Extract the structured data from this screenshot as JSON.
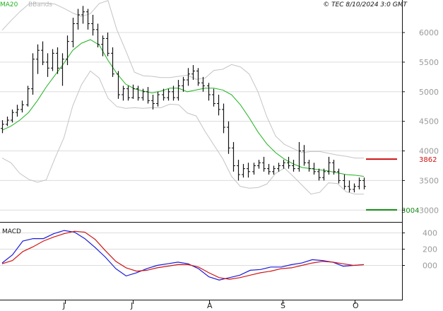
{
  "header": {
    "legend_ma": "MA20",
    "legend_bb": "BBands",
    "copyright": "© TEC 8/10/2024 3:0 GMT"
  },
  "colors": {
    "ma": "#1fb31f",
    "bbands": "#c4c4c4",
    "price": "#111111",
    "macd": "#1a1adc",
    "signal": "#d01515",
    "resistance": "#cc1111",
    "support": "#118811",
    "grid": "#dcdcdc"
  },
  "chart_data": [
    {
      "type": "ohlc",
      "panel": "price",
      "y_ticks": [
        "3000",
        "3500",
        "4000",
        "4500",
        "5000",
        "5500",
        "6000"
      ],
      "ylim": [
        2800,
        6550
      ],
      "x_ticks": [
        "J",
        "J",
        "A",
        "S",
        "O"
      ],
      "levels": {
        "resistance": {
          "label": "3862",
          "value": 3862
        },
        "support": {
          "label": "3004",
          "value": 3004
        }
      },
      "ma20": [
        [
          0,
          4350
        ],
        [
          5,
          4420
        ],
        [
          10,
          4520
        ],
        [
          15,
          4650
        ],
        [
          20,
          4850
        ],
        [
          25,
          5080
        ],
        [
          30,
          5280
        ],
        [
          35,
          5480
        ],
        [
          40,
          5700
        ],
        [
          45,
          5820
        ],
        [
          50,
          5880
        ],
        [
          55,
          5790
        ],
        [
          60,
          5530
        ],
        [
          65,
          5310
        ],
        [
          70,
          5130
        ],
        [
          75,
          5050
        ],
        [
          80,
          5010
        ],
        [
          85,
          4980
        ],
        [
          90,
          5010
        ],
        [
          95,
          5060
        ],
        [
          100,
          5060
        ],
        [
          105,
          5000
        ],
        [
          110,
          5030
        ],
        [
          115,
          5060
        ],
        [
          120,
          5060
        ],
        [
          125,
          5030
        ],
        [
          130,
          4950
        ],
        [
          135,
          4780
        ],
        [
          140,
          4560
        ],
        [
          145,
          4320
        ],
        [
          150,
          4120
        ],
        [
          155,
          3970
        ],
        [
          160,
          3860
        ],
        [
          165,
          3780
        ],
        [
          170,
          3720
        ],
        [
          175,
          3700
        ],
        [
          180,
          3680
        ],
        [
          185,
          3660
        ],
        [
          190,
          3630
        ],
        [
          195,
          3600
        ],
        [
          200,
          3590
        ],
        [
          205,
          3570
        ]
      ],
      "bb_upper": [
        [
          0,
          6040
        ],
        [
          5,
          6200
        ],
        [
          10,
          6350
        ],
        [
          15,
          6480
        ],
        [
          20,
          6500
        ],
        [
          25,
          6500
        ],
        [
          30,
          6480
        ],
        [
          35,
          6410
        ],
        [
          40,
          6330
        ],
        [
          45,
          6270
        ],
        [
          50,
          6320
        ],
        [
          55,
          6490
        ],
        [
          60,
          6540
        ],
        [
          65,
          6050
        ],
        [
          70,
          5700
        ],
        [
          75,
          5330
        ],
        [
          80,
          5270
        ],
        [
          85,
          5260
        ],
        [
          90,
          5240
        ],
        [
          95,
          5240
        ],
        [
          100,
          5260
        ],
        [
          105,
          5280
        ],
        [
          110,
          5210
        ],
        [
          115,
          5230
        ],
        [
          120,
          5360
        ],
        [
          125,
          5380
        ],
        [
          130,
          5460
        ],
        [
          135,
          5420
        ],
        [
          140,
          5300
        ],
        [
          145,
          5000
        ],
        [
          150,
          4580
        ],
        [
          155,
          4250
        ],
        [
          160,
          4110
        ],
        [
          165,
          4040
        ],
        [
          170,
          3970
        ],
        [
          175,
          3990
        ],
        [
          180,
          3990
        ],
        [
          185,
          3960
        ],
        [
          190,
          3930
        ],
        [
          195,
          3910
        ],
        [
          200,
          3880
        ],
        [
          205,
          3880
        ]
      ],
      "bb_lower": [
        [
          0,
          3880
        ],
        [
          5,
          3800
        ],
        [
          10,
          3620
        ],
        [
          15,
          3520
        ],
        [
          20,
          3470
        ],
        [
          25,
          3510
        ],
        [
          30,
          3880
        ],
        [
          35,
          4220
        ],
        [
          40,
          4760
        ],
        [
          45,
          5120
        ],
        [
          50,
          5350
        ],
        [
          55,
          5230
        ],
        [
          60,
          4890
        ],
        [
          65,
          4750
        ],
        [
          70,
          4720
        ],
        [
          75,
          4730
        ],
        [
          80,
          4720
        ],
        [
          85,
          4730
        ],
        [
          90,
          4730
        ],
        [
          95,
          4790
        ],
        [
          100,
          4780
        ],
        [
          105,
          4640
        ],
        [
          110,
          4590
        ],
        [
          115,
          4330
        ],
        [
          120,
          4100
        ],
        [
          125,
          3870
        ],
        [
          130,
          3570
        ],
        [
          135,
          3400
        ],
        [
          140,
          3370
        ],
        [
          145,
          3380
        ],
        [
          150,
          3440
        ],
        [
          155,
          3620
        ],
        [
          160,
          3710
        ],
        [
          165,
          3570
        ],
        [
          170,
          3420
        ],
        [
          175,
          3270
        ],
        [
          180,
          3300
        ],
        [
          185,
          3460
        ],
        [
          190,
          3450
        ],
        [
          195,
          3310
        ],
        [
          200,
          3270
        ],
        [
          205,
          3270
        ]
      ],
      "ohlc": [
        [
          0,
          4380,
          4520,
          4300,
          4450
        ],
        [
          2,
          4450,
          4580,
          4420,
          4520
        ],
        [
          4,
          4520,
          4700,
          4480,
          4650
        ],
        [
          6,
          4650,
          4780,
          4580,
          4700
        ],
        [
          8,
          4700,
          4850,
          4650,
          4780
        ],
        [
          10,
          4780,
          5100,
          4750,
          5050
        ],
        [
          12,
          5050,
          5650,
          4950,
          5550
        ],
        [
          14,
          5550,
          5800,
          5300,
          5700
        ],
        [
          16,
          5700,
          5850,
          5450,
          5500
        ],
        [
          18,
          5500,
          5650,
          5250,
          5400
        ],
        [
          20,
          5400,
          5720,
          5350,
          5650
        ],
        [
          22,
          5650,
          5750,
          5300,
          5400
        ],
        [
          24,
          5400,
          5650,
          5100,
          5550
        ],
        [
          26,
          5550,
          5950,
          5450,
          5850
        ],
        [
          28,
          5850,
          6250,
          5750,
          6150
        ],
        [
          30,
          6150,
          6400,
          6050,
          6300
        ],
        [
          32,
          6300,
          6450,
          6150,
          6350
        ],
        [
          34,
          6350,
          6400,
          6050,
          6150
        ],
        [
          36,
          6150,
          6300,
          5950,
          6050
        ],
        [
          38,
          6050,
          6150,
          5750,
          5800
        ],
        [
          40,
          5800,
          5950,
          5600,
          5900
        ],
        [
          42,
          5900,
          6000,
          5600,
          5650
        ],
        [
          44,
          5650,
          5750,
          5250,
          5300
        ],
        [
          46,
          5300,
          5350,
          4880,
          4950
        ],
        [
          48,
          4950,
          5100,
          4850,
          5050
        ],
        [
          50,
          5050,
          5100,
          4850,
          4900
        ],
        [
          52,
          4900,
          5120,
          4880,
          5050
        ],
        [
          54,
          5050,
          5100,
          4850,
          4900
        ],
        [
          56,
          4900,
          5050,
          4850,
          5000
        ],
        [
          58,
          5000,
          5080,
          4800,
          4850
        ],
        [
          60,
          4850,
          4950,
          4700,
          4800
        ],
        [
          62,
          4800,
          5000,
          4750,
          4950
        ],
        [
          64,
          4950,
          5050,
          4850,
          4900
        ],
        [
          66,
          4900,
          5050,
          4850,
          5000
        ],
        [
          68,
          5000,
          5100,
          4850,
          4900
        ],
        [
          70,
          4900,
          5200,
          4850,
          5100
        ],
        [
          72,
          5100,
          5250,
          5000,
          5200
        ],
        [
          74,
          5200,
          5400,
          5100,
          5300
        ],
        [
          76,
          5300,
          5450,
          5200,
          5350
        ],
        [
          78,
          5350,
          5400,
          5100,
          5150
        ],
        [
          80,
          5150,
          5250,
          5000,
          5100
        ],
        [
          82,
          5100,
          5150,
          4850,
          4950
        ],
        [
          84,
          4950,
          5050,
          4750,
          4800
        ],
        [
          86,
          4800,
          4950,
          4600,
          4700
        ],
        [
          88,
          4700,
          4800,
          4300,
          4400
        ],
        [
          90,
          4400,
          4500,
          3950,
          4050
        ],
        [
          92,
          4050,
          4150,
          3650,
          3750
        ],
        [
          94,
          3750,
          3850,
          3500,
          3600
        ],
        [
          96,
          3600,
          3780,
          3550,
          3700
        ],
        [
          98,
          3700,
          3800,
          3550,
          3650
        ],
        [
          100,
          3650,
          3800,
          3600,
          3750
        ],
        [
          102,
          3750,
          3850,
          3700,
          3800
        ],
        [
          104,
          3800,
          3900,
          3650,
          3700
        ],
        [
          106,
          3700,
          3780,
          3600,
          3650
        ],
        [
          108,
          3650,
          3750,
          3600,
          3700
        ],
        [
          110,
          3700,
          3800,
          3650,
          3750
        ],
        [
          112,
          3750,
          3850,
          3700,
          3800
        ],
        [
          114,
          3800,
          3900,
          3700,
          3750
        ],
        [
          116,
          3750,
          3850,
          3650,
          3700
        ],
        [
          118,
          3700,
          4150,
          3650,
          4000
        ],
        [
          120,
          4000,
          4100,
          3750,
          3800
        ],
        [
          122,
          3800,
          3850,
          3650,
          3700
        ],
        [
          124,
          3700,
          3800,
          3600,
          3650
        ],
        [
          126,
          3650,
          3700,
          3500,
          3550
        ],
        [
          128,
          3550,
          3700,
          3500,
          3650
        ],
        [
          130,
          3650,
          3900,
          3600,
          3800
        ],
        [
          132,
          3800,
          3850,
          3600,
          3650
        ],
        [
          134,
          3650,
          3700,
          3450,
          3500
        ],
        [
          136,
          3500,
          3600,
          3350,
          3400
        ],
        [
          138,
          3400,
          3500,
          3300,
          3350
        ],
        [
          140,
          3350,
          3450,
          3300,
          3400
        ],
        [
          142,
          3400,
          3550,
          3350,
          3500
        ],
        [
          144,
          3500,
          3550,
          3350,
          3400
        ]
      ]
    },
    {
      "type": "line",
      "panel": "macd",
      "title": "MACD",
      "y_ticks": [
        "400",
        "200",
        "000"
      ],
      "ylim": [
        -300,
        500
      ],
      "series": [
        {
          "role": "macd",
          "points": [
            [
              0,
              30
            ],
            [
              5,
              130
            ],
            [
              10,
              300
            ],
            [
              15,
              330
            ],
            [
              20,
              330
            ],
            [
              25,
              390
            ],
            [
              30,
              430
            ],
            [
              35,
              410
            ],
            [
              40,
              330
            ],
            [
              45,
              220
            ],
            [
              50,
              100
            ],
            [
              55,
              -40
            ],
            [
              60,
              -130
            ],
            [
              65,
              -90
            ],
            [
              70,
              -40
            ],
            [
              75,
              0
            ],
            [
              80,
              20
            ],
            [
              85,
              40
            ],
            [
              90,
              20
            ],
            [
              95,
              -40
            ],
            [
              100,
              -140
            ],
            [
              105,
              -180
            ],
            [
              110,
              -150
            ],
            [
              115,
              -120
            ],
            [
              120,
              -60
            ],
            [
              125,
              -50
            ],
            [
              130,
              -20
            ],
            [
              135,
              -20
            ],
            [
              140,
              10
            ],
            [
              145,
              30
            ],
            [
              150,
              70
            ],
            [
              155,
              60
            ],
            [
              160,
              40
            ],
            [
              165,
              -10
            ],
            [
              170,
              0
            ],
            [
              175,
              10
            ]
          ]
        },
        {
          "role": "signal",
          "points": [
            [
              0,
              20
            ],
            [
              5,
              60
            ],
            [
              10,
              170
            ],
            [
              15,
              230
            ],
            [
              20,
              300
            ],
            [
              25,
              350
            ],
            [
              30,
              390
            ],
            [
              35,
              420
            ],
            [
              40,
              410
            ],
            [
              45,
              320
            ],
            [
              50,
              180
            ],
            [
              55,
              50
            ],
            [
              60,
              -30
            ],
            [
              65,
              -70
            ],
            [
              70,
              -60
            ],
            [
              75,
              -30
            ],
            [
              80,
              -10
            ],
            [
              85,
              10
            ],
            [
              90,
              10
            ],
            [
              95,
              -20
            ],
            [
              100,
              -90
            ],
            [
              105,
              -150
            ],
            [
              110,
              -170
            ],
            [
              115,
              -150
            ],
            [
              120,
              -120
            ],
            [
              125,
              -90
            ],
            [
              130,
              -70
            ],
            [
              135,
              -40
            ],
            [
              140,
              -30
            ],
            [
              145,
              0
            ],
            [
              150,
              30
            ],
            [
              155,
              50
            ],
            [
              160,
              40
            ],
            [
              165,
              20
            ],
            [
              170,
              0
            ],
            [
              175,
              10
            ]
          ]
        }
      ]
    }
  ]
}
